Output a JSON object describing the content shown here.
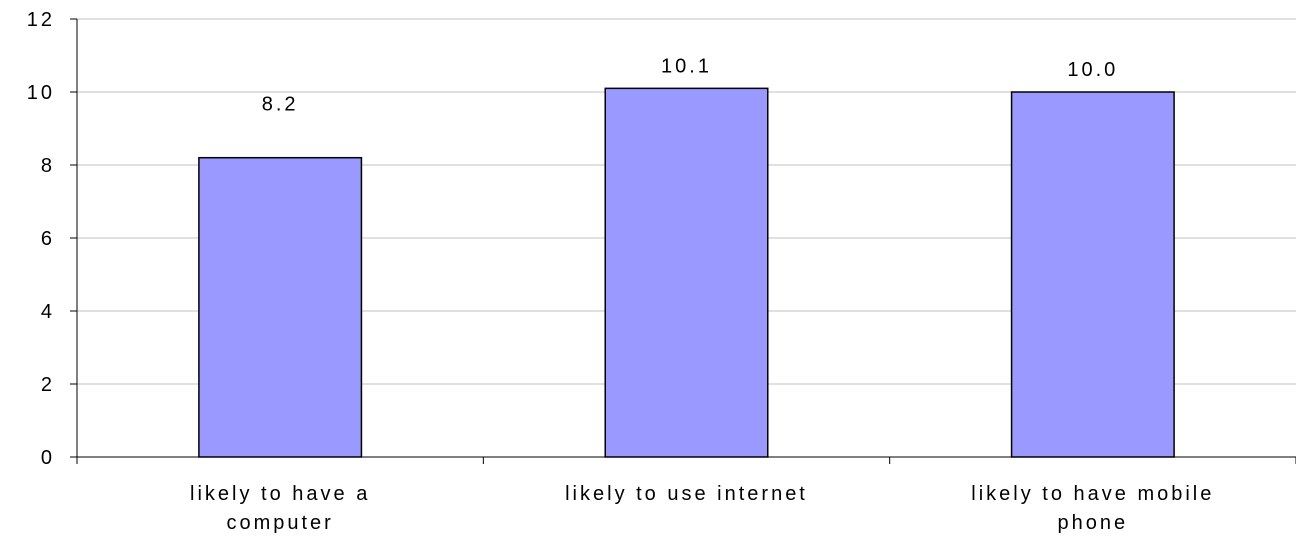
{
  "chart_data": {
    "type": "bar",
    "categories": [
      [
        "likely to have a",
        "computer"
      ],
      [
        "likely to use internet"
      ],
      [
        "likely to have mobile",
        "phone"
      ]
    ],
    "series": [
      {
        "values": [
          8.2,
          10.1,
          10.0
        ],
        "color": "#9999ff"
      }
    ],
    "data_labels": [
      "8.2",
      "10.1",
      "10.0"
    ],
    "ylim": [
      0,
      12
    ],
    "yticks": [
      "0",
      "2",
      "4",
      "6",
      "8",
      "10",
      "12"
    ],
    "grid": true,
    "legend": "none",
    "title": "",
    "xlabel": "",
    "ylabel": ""
  }
}
